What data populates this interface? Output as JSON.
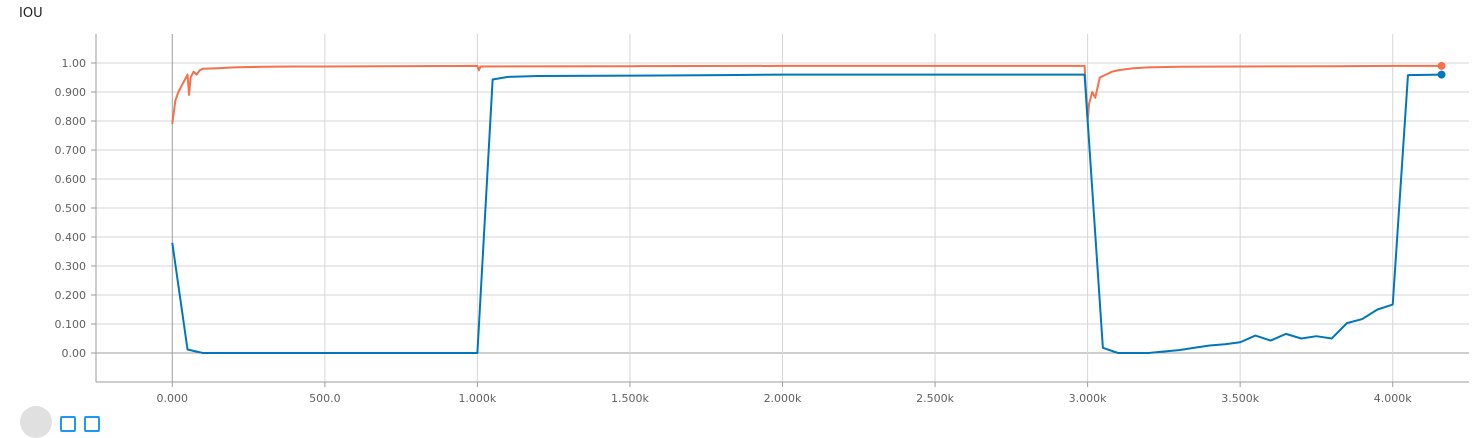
{
  "chart_data": {
    "type": "line",
    "title": "IOU",
    "xlim": [
      -250,
      4250
    ],
    "ylim": [
      -0.1,
      1.1
    ],
    "grid": true,
    "x_ticks": [
      {
        "value": 0,
        "label": "0.000"
      },
      {
        "value": 500,
        "label": "500.0"
      },
      {
        "value": 1000,
        "label": "1.000k"
      },
      {
        "value": 1500,
        "label": "1.500k"
      },
      {
        "value": 2000,
        "label": "2.000k"
      },
      {
        "value": 2500,
        "label": "2.500k"
      },
      {
        "value": 3000,
        "label": "3.000k"
      },
      {
        "value": 3500,
        "label": "3.500k"
      },
      {
        "value": 4000,
        "label": "4.000k"
      }
    ],
    "y_ticks": [
      {
        "value": 0.0,
        "label": "0.00"
      },
      {
        "value": 0.1,
        "label": "0.100"
      },
      {
        "value": 0.2,
        "label": "0.200"
      },
      {
        "value": 0.3,
        "label": "0.300"
      },
      {
        "value": 0.4,
        "label": "0.400"
      },
      {
        "value": 0.5,
        "label": "0.500"
      },
      {
        "value": 0.6,
        "label": "0.600"
      },
      {
        "value": 0.7,
        "label": "0.700"
      },
      {
        "value": 0.8,
        "label": "0.800"
      },
      {
        "value": 0.9,
        "label": "0.900"
      },
      {
        "value": 1.0,
        "label": "1.00"
      }
    ],
    "series": [
      {
        "color": "#f4714c",
        "points": [
          [
            0,
            0.79
          ],
          [
            10,
            0.87
          ],
          [
            20,
            0.9
          ],
          [
            30,
            0.92
          ],
          [
            40,
            0.94
          ],
          [
            50,
            0.96
          ],
          [
            55,
            0.89
          ],
          [
            60,
            0.95
          ],
          [
            70,
            0.97
          ],
          [
            80,
            0.96
          ],
          [
            90,
            0.975
          ],
          [
            100,
            0.98
          ],
          [
            150,
            0.982
          ],
          [
            200,
            0.985
          ],
          [
            300,
            0.987
          ],
          [
            400,
            0.988
          ],
          [
            500,
            0.988
          ],
          [
            700,
            0.989
          ],
          [
            1000,
            0.99
          ],
          [
            1005,
            0.975
          ],
          [
            1010,
            0.988
          ],
          [
            1500,
            0.989
          ],
          [
            2000,
            0.99
          ],
          [
            2500,
            0.99
          ],
          [
            2990,
            0.99
          ],
          [
            3000,
            0.8
          ],
          [
            3005,
            0.86
          ],
          [
            3015,
            0.9
          ],
          [
            3025,
            0.88
          ],
          [
            3040,
            0.95
          ],
          [
            3060,
            0.96
          ],
          [
            3080,
            0.97
          ],
          [
            3100,
            0.975
          ],
          [
            3150,
            0.982
          ],
          [
            3200,
            0.985
          ],
          [
            3300,
            0.987
          ],
          [
            3500,
            0.988
          ],
          [
            3800,
            0.989
          ],
          [
            4000,
            0.99
          ],
          [
            4160,
            0.99
          ]
        ]
      },
      {
        "color": "#0077bb",
        "points": [
          [
            0,
            0.38
          ],
          [
            50,
            0.012
          ],
          [
            100,
            0.0
          ],
          [
            1000,
            0.0
          ],
          [
            1050,
            0.943
          ],
          [
            1100,
            0.952
          ],
          [
            1200,
            0.955
          ],
          [
            1400,
            0.956
          ],
          [
            1600,
            0.957
          ],
          [
            1800,
            0.958
          ],
          [
            2000,
            0.96
          ],
          [
            2500,
            0.96
          ],
          [
            2990,
            0.96
          ],
          [
            3050,
            0.018
          ],
          [
            3100,
            0.0
          ],
          [
            3200,
            0.0
          ],
          [
            3250,
            0.005
          ],
          [
            3300,
            0.01
          ],
          [
            3350,
            0.018
          ],
          [
            3400,
            0.026
          ],
          [
            3450,
            0.03
          ],
          [
            3500,
            0.037
          ],
          [
            3550,
            0.06
          ],
          [
            3600,
            0.043
          ],
          [
            3650,
            0.066
          ],
          [
            3700,
            0.05
          ],
          [
            3750,
            0.058
          ],
          [
            3800,
            0.05
          ],
          [
            3850,
            0.103
          ],
          [
            3900,
            0.117
          ],
          [
            3950,
            0.15
          ],
          [
            4000,
            0.167
          ],
          [
            4050,
            0.958
          ],
          [
            4160,
            0.96
          ]
        ]
      }
    ]
  }
}
